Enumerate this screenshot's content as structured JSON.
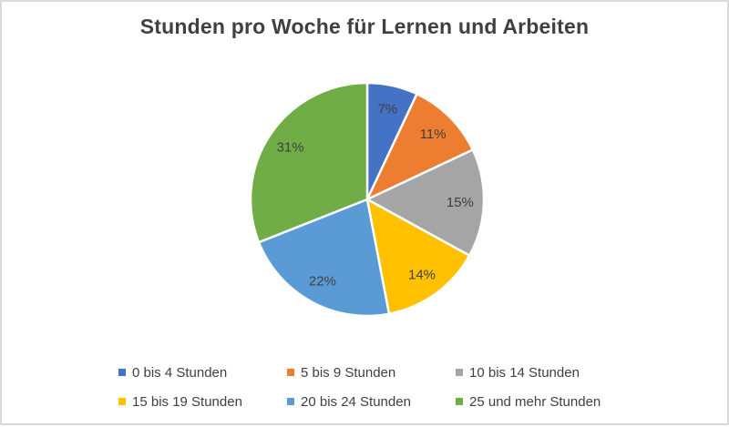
{
  "frame": {
    "background_color": "#FFFFFF",
    "border_color": "#D9D9D9"
  },
  "chart_data": {
    "type": "pie",
    "title": "Stunden pro Woche für Lernen und Arbeiten",
    "data_labels": "percent",
    "start_angle_deg": 0,
    "direction": "clockwise",
    "legend_position": "bottom",
    "legend_rows": 2,
    "legend_columns": 3,
    "label_color": "#404040",
    "title_color": "#404040",
    "slices": [
      {
        "label": "0 bis 4 Stunden",
        "value": 7,
        "display_label": "7%",
        "color": "#4472C4"
      },
      {
        "label": "5 bis 9 Stunden",
        "value": 11,
        "display_label": "11%",
        "color": "#ED7D31"
      },
      {
        "label": "10 bis 14 Stunden",
        "value": 15,
        "display_label": "15%",
        "color": "#A5A5A5"
      },
      {
        "label": "15 bis 19 Stunden",
        "value": 14,
        "display_label": "14%",
        "color": "#FFC000"
      },
      {
        "label": "20 bis 24 Stunden",
        "value": 22,
        "display_label": "22%",
        "color": "#5B9BD5"
      },
      {
        "label": "25 und mehr Stunden",
        "value": 31,
        "display_label": "31%",
        "color": "#70AD47"
      }
    ]
  }
}
